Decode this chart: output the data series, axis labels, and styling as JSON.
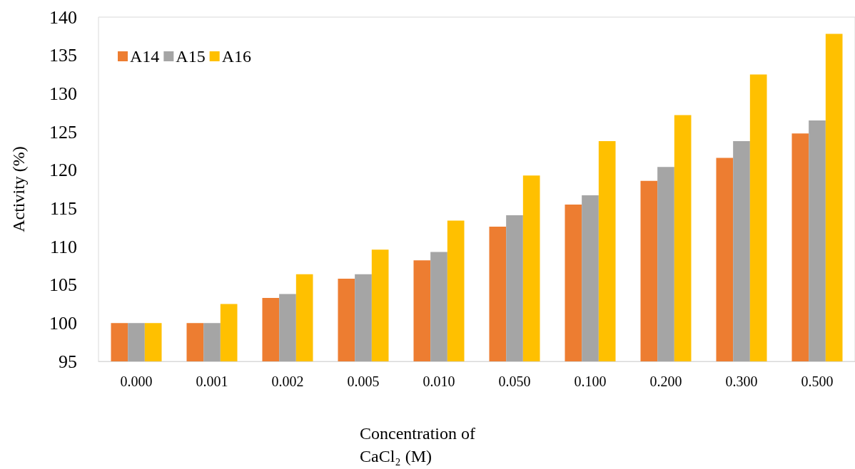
{
  "chart_data": {
    "type": "bar",
    "xlabel": "Concentration of CaCl₂ (M)",
    "ylabel": "Activity (%)",
    "categories": [
      "0.000",
      "0.001",
      "0.002",
      "0.005",
      "0.010",
      "0.050",
      "0.100",
      "0.200",
      "0.300",
      "0.500"
    ],
    "series": [
      {
        "name": "A14",
        "color": "#ed7d31",
        "values": [
          100,
          100,
          103.3,
          105.8,
          108.2,
          112.6,
          115.5,
          118.6,
          121.6,
          124.8
        ]
      },
      {
        "name": "A15",
        "color": "#a5a5a5",
        "values": [
          100,
          100,
          103.8,
          106.4,
          109.3,
          114.1,
          116.7,
          120.4,
          123.8,
          126.5
        ]
      },
      {
        "name": "A16",
        "color": "#ffc000",
        "values": [
          100,
          102.5,
          106.4,
          109.6,
          113.4,
          119.3,
          123.8,
          127.2,
          132.5,
          137.8
        ]
      }
    ],
    "ylim": [
      95,
      140
    ],
    "yticks": [
      95,
      100,
      105,
      110,
      115,
      120,
      125,
      130,
      135,
      140
    ],
    "grid": false,
    "legend": "top left"
  }
}
